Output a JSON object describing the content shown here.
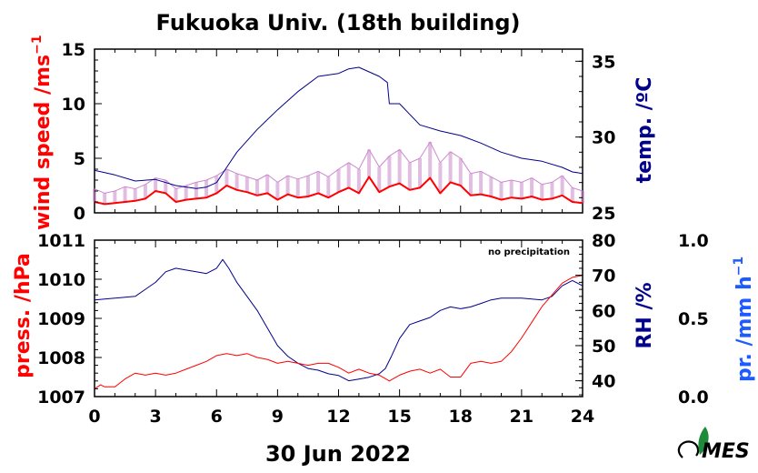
{
  "title": "Fukuoka Univ. (18th building)",
  "date_label": "30 Jun 2022",
  "note": "no precipitation",
  "colors": {
    "wind": "#ff0000",
    "wind_gust": "#cc88cc",
    "temperature": "#00008b",
    "pressure": "#ff0000",
    "rh": "#00008b",
    "precip_axis": "#1e5bff",
    "frame": "#000000",
    "logo_green": "#1f8a3a"
  },
  "logo": {
    "text": "MES"
  },
  "chart_data": [
    {
      "type": "line",
      "panel": "top",
      "x_axis": {
        "range": [
          0,
          24
        ],
        "ticks": [
          0,
          3,
          6,
          9,
          12,
          15,
          18,
          21,
          24
        ],
        "minor_step": 1
      },
      "left_axis": {
        "label": "wind speed /ms",
        "label_sup": "−1",
        "range": [
          0,
          15
        ],
        "ticks": [
          0,
          5,
          10,
          15
        ]
      },
      "right_axis": {
        "label": "temp. /ºC",
        "range": [
          25,
          35.8
        ],
        "ticks": [
          25,
          30,
          35
        ]
      },
      "grid": false,
      "series": [
        {
          "axis": "right",
          "x": [
            0,
            1,
            2,
            3,
            4,
            5,
            5.5,
            6,
            6.5,
            7,
            8,
            9,
            10,
            11,
            12,
            12.5,
            13,
            13.5,
            14,
            14.4,
            14.5,
            15,
            15.5,
            16,
            17,
            18,
            19,
            20,
            21,
            22,
            23,
            23.5,
            24
          ],
          "y": [
            27.8,
            27.5,
            27.1,
            27.2,
            26.8,
            26.6,
            26.7,
            27.0,
            28.0,
            29.0,
            30.5,
            31.8,
            33.0,
            34.0,
            34.2,
            34.5,
            34.6,
            34.3,
            34.0,
            33.6,
            32.2,
            32.2,
            31.5,
            30.8,
            30.4,
            30.1,
            29.6,
            29.0,
            28.6,
            28.4,
            28.0,
            27.7,
            27.6
          ]
        },
        {
          "axis": "left",
          "x": [
            0,
            0.5,
            1,
            1.5,
            2,
            2.5,
            3,
            3.5,
            4,
            4.5,
            5,
            5.5,
            6,
            6.5,
            7,
            7.5,
            8,
            8.5,
            9,
            9.5,
            10,
            10.5,
            11,
            11.5,
            12,
            12.5,
            13,
            13.5,
            14,
            14.5,
            15,
            15.5,
            16,
            16.5,
            17,
            17.5,
            18,
            18.5,
            19,
            19.5,
            20,
            20.5,
            21,
            21.5,
            22,
            22.5,
            23,
            23.5,
            24
          ],
          "y": [
            1.0,
            0.8,
            0.9,
            1.0,
            1.1,
            1.3,
            2.0,
            1.8,
            1.0,
            1.2,
            1.3,
            1.4,
            1.8,
            2.5,
            2.1,
            1.9,
            1.6,
            1.8,
            1.2,
            1.7,
            1.4,
            1.5,
            1.8,
            1.4,
            1.9,
            2.3,
            1.8,
            3.3,
            1.9,
            2.4,
            2.7,
            2.1,
            2.3,
            3.2,
            1.8,
            2.8,
            2.5,
            1.6,
            1.7,
            1.5,
            1.2,
            1.4,
            1.3,
            1.5,
            1.2,
            1.3,
            1.6,
            1.0,
            0.9
          ]
        },
        {
          "axis": "left",
          "x": [
            0,
            0.5,
            1,
            1.5,
            2,
            2.5,
            3,
            3.5,
            4,
            4.5,
            5,
            5.5,
            6,
            6.5,
            7,
            7.5,
            8,
            8.5,
            9,
            9.5,
            10,
            10.5,
            11,
            11.5,
            12,
            12.5,
            13,
            13.5,
            14,
            14.5,
            15,
            15.5,
            16,
            16.5,
            17,
            17.5,
            18,
            18.5,
            19,
            19.5,
            20,
            20.5,
            21,
            21.5,
            22,
            22.5,
            23,
            23.5,
            24
          ],
          "y": [
            2.2,
            1.8,
            2.0,
            2.4,
            2.2,
            2.6,
            3.2,
            3.0,
            2.2,
            2.5,
            2.8,
            3.0,
            3.4,
            4.0,
            3.6,
            3.3,
            3.0,
            3.5,
            2.8,
            3.4,
            3.1,
            3.4,
            3.8,
            3.3,
            4.0,
            4.6,
            4.0,
            5.8,
            4.2,
            5.2,
            5.8,
            4.6,
            5.0,
            6.5,
            4.6,
            5.6,
            5.0,
            3.6,
            3.8,
            3.3,
            2.8,
            3.0,
            2.8,
            3.2,
            2.6,
            2.8,
            3.4,
            2.3,
            2.0
          ]
        }
      ]
    },
    {
      "type": "line",
      "panel": "bottom",
      "x_axis": {
        "range": [
          0,
          24
        ],
        "ticks": [
          0,
          3,
          6,
          9,
          12,
          15,
          18,
          21,
          24
        ],
        "tick_labels": [
          "0",
          "3",
          "6",
          "9",
          "12",
          "15",
          "18",
          "21",
          "24"
        ],
        "minor_step": 1
      },
      "left_axis": {
        "label": "press. /hPa",
        "range": [
          1007,
          1011
        ],
        "ticks": [
          1007,
          1008,
          1009,
          1010,
          1011
        ]
      },
      "right_axis": {
        "label": "RH /%",
        "range": [
          35.5,
          80
        ],
        "ticks": [
          40,
          50,
          60,
          70,
          80
        ]
      },
      "extra_axis": {
        "label": "pr. /mm h",
        "label_sup": "−1",
        "range": [
          0,
          1
        ],
        "ticks": [
          "0.0",
          "0.5",
          "1.0"
        ]
      },
      "grid": false,
      "series": [
        {
          "axis": "right",
          "x": [
            0,
            1,
            2,
            2.5,
            3,
            3.5,
            4,
            4.5,
            5,
            5.5,
            6,
            6.3,
            6.6,
            7,
            7.5,
            8,
            8.5,
            9,
            9.5,
            10,
            10.5,
            11,
            11.5,
            12,
            12.5,
            13,
            13.5,
            14,
            14.3,
            14.6,
            15,
            15.5,
            16,
            16.5,
            17,
            17.5,
            18,
            18.5,
            19,
            19.5,
            20,
            21,
            22,
            22.5,
            23,
            23.5,
            24
          ],
          "y": [
            63,
            63.5,
            64,
            66,
            68,
            71,
            72,
            71.5,
            71,
            70.5,
            72,
            74.5,
            72,
            68,
            64,
            60,
            55,
            50,
            47,
            45,
            43.5,
            43,
            42,
            41.5,
            40,
            40.5,
            41,
            42,
            43.5,
            47,
            52,
            56,
            57,
            58,
            60,
            61,
            60.5,
            61,
            62,
            63,
            63.5,
            63.5,
            63,
            64,
            67,
            68.5,
            67
          ]
        },
        {
          "axis": "left",
          "x": [
            0,
            0.3,
            0.5,
            1,
            1.5,
            2,
            2.5,
            3,
            3.5,
            4,
            4.5,
            5,
            5.5,
            6,
            6.5,
            7,
            7.5,
            8,
            8.5,
            9,
            9.5,
            10,
            10.5,
            11,
            11.5,
            12,
            12.5,
            13,
            13.5,
            14,
            14.5,
            15,
            15.5,
            16,
            16.5,
            17,
            17.5,
            18,
            18.5,
            19,
            19.5,
            20,
            20.5,
            21,
            21.5,
            22,
            22.5,
            23,
            23.5,
            24
          ],
          "y": [
            1007.2,
            1007.3,
            1007.25,
            1007.25,
            1007.45,
            1007.6,
            1007.55,
            1007.6,
            1007.55,
            1007.6,
            1007.7,
            1007.8,
            1007.9,
            1008.05,
            1008.1,
            1008.05,
            1008.1,
            1008.0,
            1007.95,
            1007.85,
            1007.9,
            1007.85,
            1007.8,
            1007.85,
            1007.85,
            1007.75,
            1007.6,
            1007.7,
            1007.6,
            1007.55,
            1007.4,
            1007.55,
            1007.65,
            1007.7,
            1007.6,
            1007.7,
            1007.5,
            1007.5,
            1007.85,
            1007.9,
            1007.85,
            1007.9,
            1008.15,
            1008.5,
            1008.9,
            1009.3,
            1009.6,
            1009.9,
            1010.05,
            1010.1
          ]
        }
      ]
    }
  ]
}
